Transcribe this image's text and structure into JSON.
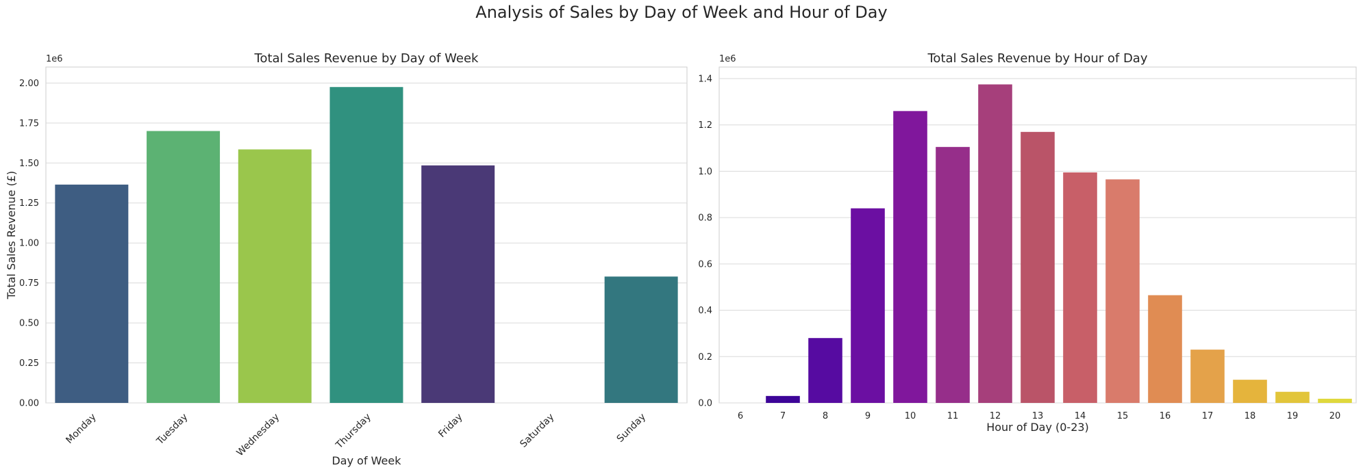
{
  "figure": {
    "title": "Analysis of Sales by Day of Week and Hour of Day"
  },
  "chart_data": [
    {
      "type": "bar",
      "title": "Total Sales Revenue by Day of Week",
      "xlabel": "Day of Week",
      "ylabel": "Total Sales Revenue (£)",
      "offset_label": "1e6",
      "ylim": [
        0,
        2.1
      ],
      "yticks": [
        "0.00",
        "0.25",
        "0.50",
        "0.75",
        "1.00",
        "1.25",
        "1.50",
        "1.75",
        "2.00"
      ],
      "categories": [
        "Monday",
        "Tuesday",
        "Wednesday",
        "Thursday",
        "Friday",
        "Saturday",
        "Sunday"
      ],
      "values": [
        1.365,
        1.7,
        1.585,
        1.975,
        1.485,
        0,
        0.79
      ],
      "colors": [
        "#3e5d82",
        "#5cb273",
        "#9ac64c",
        "#30917f",
        "#4a3976",
        "#ffffff",
        "#33777f"
      ],
      "grid": true,
      "xtick_rotation": 45
    },
    {
      "type": "bar",
      "title": "Total Sales Revenue by Hour of Day",
      "xlabel": "Hour of Day (0-23)",
      "ylabel": "",
      "offset_label": "1e6",
      "ylim": [
        0,
        1.45
      ],
      "yticks": [
        "0.0",
        "0.2",
        "0.4",
        "0.6",
        "0.8",
        "1.0",
        "1.2",
        "1.4"
      ],
      "categories": [
        "6",
        "7",
        "8",
        "9",
        "10",
        "11",
        "12",
        "13",
        "14",
        "15",
        "16",
        "17",
        "18",
        "19",
        "20"
      ],
      "values": [
        0.0,
        0.03,
        0.28,
        0.84,
        1.26,
        1.105,
        1.375,
        1.17,
        0.995,
        0.965,
        0.465,
        0.23,
        0.1,
        0.048,
        0.018
      ],
      "colors": [
        "#1c0788",
        "#3d0598",
        "#560ba1",
        "#6b0fa2",
        "#80179c",
        "#962e8a",
        "#a63f7b",
        "#ba5468",
        "#c85f68",
        "#d97b6b",
        "#e08c53",
        "#e4a24a",
        "#e5b43c",
        "#e2c53a",
        "#dfd83c"
      ],
      "grid": true,
      "xtick_rotation": 0
    }
  ]
}
